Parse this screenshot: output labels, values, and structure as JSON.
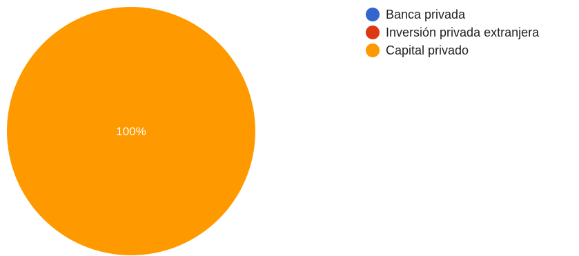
{
  "chart_data": {
    "type": "pie",
    "title": "",
    "series": [
      {
        "name": "Banca privada",
        "value": 0,
        "color": "#3366cc"
      },
      {
        "name": "Inversión privada extranjera",
        "value": 0,
        "color": "#dc3912"
      },
      {
        "name": "Capital privado",
        "value": 100,
        "color": "#ff9900"
      }
    ],
    "slice_labels": [
      "100%"
    ],
    "legend_position": "right"
  }
}
